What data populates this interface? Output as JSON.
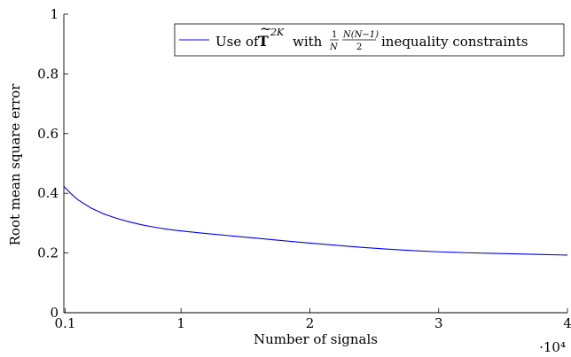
{
  "chart_data": {
    "type": "line",
    "title": "",
    "xlabel": "Number of signals",
    "ylabel": "Root mean square error",
    "x_multiplier": "·10⁴",
    "xlim": [
      0.09,
      4
    ],
    "ylim": [
      0,
      1
    ],
    "xticks": [
      0.1,
      1,
      2,
      3,
      4
    ],
    "xtick_labels": [
      "0.1",
      "1",
      "2",
      "3",
      "4"
    ],
    "yticks": [
      0,
      0.2,
      0.4,
      0.6,
      0.8,
      1
    ],
    "ytick_labels": [
      "0",
      "0.2",
      "0.4",
      "0.6",
      "0.8",
      "1"
    ],
    "grid": false,
    "legend_position": "top-right",
    "series": [
      {
        "name": "Use of T̃^{2K} with (1/N)·N(N−1)/2 inequality constraints",
        "color": "#0000ff",
        "x": [
          0.09,
          0.15,
          0.2,
          0.3,
          0.4,
          0.5,
          0.6,
          0.7,
          0.8,
          0.9,
          1.0,
          1.2,
          1.4,
          1.6,
          1.8,
          2.0,
          2.2,
          2.4,
          2.6,
          2.8,
          3.0,
          3.2,
          3.4,
          3.6,
          3.8,
          4.0
        ],
        "y": [
          0.423,
          0.397,
          0.378,
          0.351,
          0.331,
          0.316,
          0.304,
          0.294,
          0.286,
          0.279,
          0.274,
          0.265,
          0.257,
          0.249,
          0.241,
          0.233,
          0.226,
          0.219,
          0.213,
          0.208,
          0.204,
          0.201,
          0.199,
          0.197,
          0.195,
          0.193
        ]
      }
    ]
  }
}
